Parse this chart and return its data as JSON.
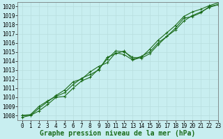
{
  "title": "Graphe pression niveau de la mer (hPa)",
  "background_color": "#c8eef0",
  "grid_color": "#b8dede",
  "line_color": "#1a6b1a",
  "xlim": [
    -0.5,
    23
  ],
  "ylim": [
    1007.5,
    1020.5
  ],
  "yticks": [
    1008,
    1009,
    1010,
    1011,
    1012,
    1013,
    1014,
    1015,
    1016,
    1017,
    1018,
    1019,
    1020
  ],
  "xticks": [
    0,
    1,
    2,
    3,
    4,
    5,
    6,
    7,
    8,
    9,
    10,
    11,
    12,
    13,
    14,
    15,
    16,
    17,
    18,
    19,
    20,
    21,
    22,
    23
  ],
  "series": [
    [
      1008.0,
      1008.0,
      1008.5,
      1009.2,
      1010.0,
      1010.1,
      1011.0,
      1011.8,
      1012.2,
      1013.1,
      1014.2,
      1015.1,
      1015.0,
      1014.4,
      1014.3,
      1014.8,
      1015.8,
      1016.7,
      1017.6,
      1018.7,
      1018.9,
      1019.3,
      1020.0,
      1020.2
    ],
    [
      1008.0,
      1008.1,
      1009.0,
      1009.6,
      1010.1,
      1010.5,
      1011.4,
      1012.1,
      1012.5,
      1013.0,
      1014.4,
      1014.8,
      1015.1,
      1014.2,
      1014.5,
      1015.0,
      1016.0,
      1016.7,
      1017.4,
      1018.4,
      1019.0,
      1019.4,
      1019.9,
      1020.2
    ],
    [
      1007.8,
      1008.0,
      1008.8,
      1009.5,
      1010.2,
      1010.8,
      1011.7,
      1012.0,
      1012.8,
      1013.4,
      1013.8,
      1014.9,
      1014.7,
      1014.1,
      1014.4,
      1015.3,
      1016.3,
      1017.1,
      1017.9,
      1018.9,
      1019.4,
      1019.7,
      1020.1,
      1020.4
    ]
  ],
  "marker": "+",
  "markersize": 3,
  "linewidth": 0.8,
  "title_fontsize": 7,
  "tick_fontsize": 5.5
}
